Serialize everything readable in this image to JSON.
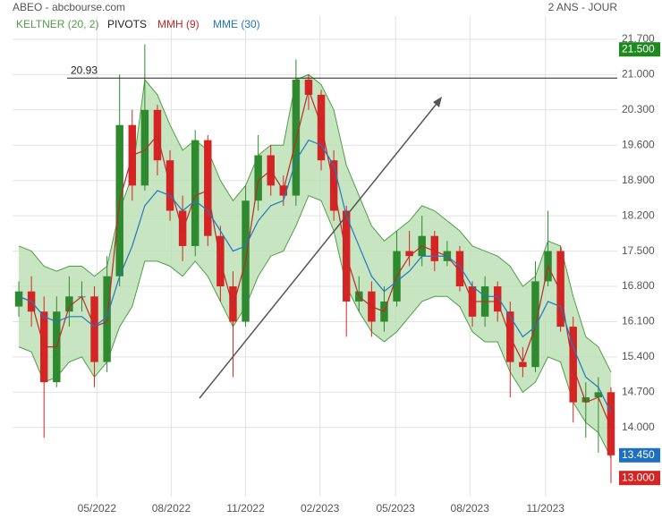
{
  "chart_data": {
    "type": "candlestick",
    "title": "ABEO - abcbourse.com",
    "subtitle": "2 ANS - JOUR",
    "up_color": "#2f8a2f",
    "down_color": "#d42424",
    "open": [
      16.4,
      16.7,
      16.3,
      14.9,
      16.3,
      16.6,
      16.6,
      15.3,
      17.0,
      20.0,
      18.8,
      20.3,
      19.3,
      18.3,
      17.6,
      19.7,
      17.8,
      16.8,
      16.1,
      18.5,
      19.4,
      18.8,
      18.6,
      20.9,
      20.6,
      19.3,
      18.3,
      16.5,
      16.7,
      16.1,
      16.5,
      17.5,
      17.4,
      17.8,
      17.3,
      17.5,
      16.8,
      16.2,
      16.8,
      16.3,
      15.3,
      15.2,
      16.9,
      17.5,
      16.0,
      14.5,
      14.6,
      14.7
    ],
    "high": [
      16.9,
      17.0,
      16.6,
      16.6,
      17.0,
      16.9,
      16.8,
      17.4,
      21.0,
      20.3,
      21.6,
      20.4,
      19.5,
      18.6,
      19.9,
      19.8,
      18.0,
      17.1,
      18.8,
      19.8,
      19.6,
      19.0,
      21.3,
      21.0,
      20.7,
      19.5,
      18.4,
      17.0,
      16.9,
      16.8,
      17.9,
      17.9,
      18.2,
      17.9,
      17.7,
      17.6,
      16.9,
      17.0,
      16.9,
      16.5,
      15.6,
      17.3,
      18.3,
      17.6,
      16.2,
      14.9,
      15.0,
      14.8
    ],
    "low": [
      16.2,
      16.0,
      13.8,
      14.8,
      16.0,
      16.3,
      14.8,
      15.1,
      16.8,
      18.5,
      18.7,
      19.0,
      18.1,
      17.3,
      17.4,
      17.6,
      16.5,
      15.0,
      16.0,
      18.3,
      18.6,
      18.4,
      18.4,
      20.3,
      19.1,
      18.1,
      15.8,
      16.3,
      15.8,
      15.9,
      16.4,
      17.2,
      17.2,
      17.1,
      17.2,
      16.7,
      16.0,
      16.0,
      16.1,
      14.6,
      15.0,
      15.1,
      16.8,
      15.9,
      14.1,
      13.8,
      13.5,
      12.9
    ],
    "close": [
      16.7,
      16.3,
      14.9,
      16.3,
      16.6,
      16.6,
      15.3,
      17.0,
      20.0,
      18.8,
      20.3,
      19.3,
      18.3,
      17.6,
      19.7,
      17.8,
      16.8,
      16.1,
      18.5,
      19.4,
      18.8,
      18.6,
      20.9,
      20.6,
      19.3,
      18.3,
      16.5,
      16.7,
      16.1,
      16.5,
      17.5,
      17.4,
      17.8,
      17.3,
      17.5,
      16.8,
      16.2,
      16.8,
      16.3,
      15.3,
      15.2,
      16.9,
      17.5,
      16.0,
      14.5,
      14.6,
      14.7,
      13.45
    ],
    "keltner": {
      "name": "KELTNER (20, 2)",
      "color": "#4f9e45",
      "fill": "#b8dfb0",
      "upper": [
        17.6,
        17.5,
        17.2,
        17.1,
        17.2,
        17.2,
        17.0,
        17.2,
        18.3,
        19.0,
        20.9,
        20.6,
        20.0,
        19.5,
        19.7,
        19.5,
        18.9,
        18.5,
        18.8,
        19.4,
        19.6,
        19.6,
        20.9,
        21.0,
        20.8,
        20.3,
        19.2,
        18.6,
        18.0,
        17.7,
        17.9,
        18.1,
        18.4,
        18.3,
        18.1,
        17.9,
        17.6,
        17.5,
        17.4,
        17.2,
        16.8,
        17.0,
        17.7,
        17.6,
        16.6,
        15.8,
        15.6,
        15.1
      ],
      "lower": [
        15.6,
        15.5,
        14.9,
        15.0,
        15.3,
        15.4,
        15.0,
        15.3,
        16.0,
        16.4,
        17.3,
        17.3,
        17.2,
        17.0,
        17.3,
        17.0,
        16.5,
        16.0,
        16.4,
        17.0,
        17.4,
        17.5,
        18.0,
        18.6,
        18.5,
        17.9,
        16.8,
        16.3,
        15.9,
        15.7,
        15.9,
        16.2,
        16.5,
        16.6,
        16.6,
        16.4,
        15.9,
        15.7,
        15.7,
        15.1,
        14.7,
        14.9,
        15.4,
        15.3,
        14.5,
        14.1,
        13.9,
        13.4
      ]
    },
    "pivots": {
      "name": "PIVOTS",
      "color": "#222222",
      "values": [
        20.93
      ]
    },
    "series": [
      {
        "name": "MMH (9)",
        "color": "#c0282a",
        "values": [
          16.6,
          16.5,
          15.6,
          15.6,
          16.4,
          16.6,
          16.0,
          16.1,
          18.5,
          19.4,
          19.5,
          19.8,
          18.8,
          17.9,
          18.6,
          18.7,
          17.3,
          16.4,
          17.3,
          18.9,
          19.1,
          18.7,
          19.7,
          20.7,
          20.0,
          18.8,
          17.4,
          16.6,
          16.4,
          16.3,
          17.0,
          17.4,
          17.6,
          17.5,
          17.4,
          17.1,
          16.5,
          16.5,
          16.5,
          15.8,
          15.3,
          16.0,
          17.2,
          16.7,
          15.2,
          14.5,
          14.6,
          14.0
        ]
      },
      {
        "name": "MME (30)",
        "color": "#1f77c4",
        "values": [
          16.6,
          16.5,
          16.2,
          16.1,
          16.2,
          16.2,
          16.0,
          16.2,
          17.0,
          17.6,
          18.4,
          18.7,
          18.6,
          18.3,
          18.5,
          18.3,
          17.9,
          17.5,
          17.6,
          18.1,
          18.4,
          18.5,
          19.3,
          19.7,
          19.6,
          19.2,
          18.2,
          17.6,
          17.0,
          16.7,
          16.9,
          17.1,
          17.4,
          17.4,
          17.4,
          17.2,
          16.8,
          16.6,
          16.6,
          16.2,
          15.8,
          16.0,
          16.5,
          16.4,
          15.6,
          15.0,
          14.8,
          14.3
        ]
      }
    ],
    "markers": [
      {
        "value": 21.5,
        "label": "21.500",
        "color": "#1e8a1e"
      },
      {
        "value": 13.45,
        "label": "13.450",
        "color": "#1f6fc0"
      },
      {
        "value": 13.0,
        "label": "13.000",
        "color": "#d42424"
      }
    ],
    "xlim": [
      0,
      48
    ],
    "xticks": [
      {
        "value": 6.7,
        "label": "05/2022"
      },
      {
        "value": 12.6,
        "label": "08/2022"
      },
      {
        "value": 18.5,
        "label": "11/2022"
      },
      {
        "value": 24.4,
        "label": "02/2023"
      },
      {
        "value": 30.4,
        "label": "05/2023"
      },
      {
        "value": 36.3,
        "label": "08/2023"
      },
      {
        "value": 42.3,
        "label": "11/2023"
      }
    ],
    "ylim": [
      12.63,
      22.16
    ],
    "yticks": [
      {
        "value": 21.7,
        "label": "21.700"
      },
      {
        "value": 21.0,
        "label": "21.000"
      },
      {
        "value": 20.3,
        "label": "20.300"
      },
      {
        "value": 19.6,
        "label": "19.600"
      },
      {
        "value": 18.9,
        "label": "18.900"
      },
      {
        "value": 18.2,
        "label": "18.200"
      },
      {
        "value": 17.5,
        "label": "17.500"
      },
      {
        "value": 16.8,
        "label": "16.800"
      },
      {
        "value": 16.1,
        "label": "16.100"
      },
      {
        "value": 15.4,
        "label": "15.400"
      },
      {
        "value": 14.7,
        "label": "14.700"
      },
      {
        "value": 14.0,
        "label": "14.000"
      }
    ],
    "grid": true
  }
}
